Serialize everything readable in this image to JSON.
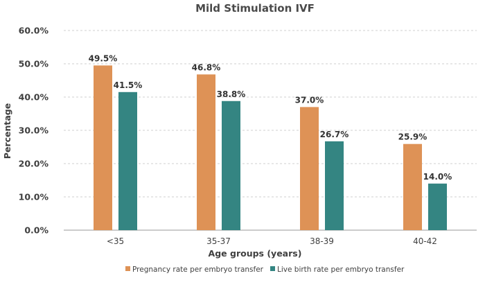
{
  "chart_data": {
    "type": "bar",
    "title": "Mild Stimulation IVF",
    "xlabel": "Age groups (years)",
    "ylabel": "Percentage",
    "categories": [
      "<35",
      "35-37",
      "38-39",
      "40-42"
    ],
    "series": [
      {
        "name": "Pregnancy rate per embryo transfer",
        "values": [
          49.5,
          46.8,
          37.0,
          25.9
        ],
        "labels": [
          "49.5%",
          "46.8%",
          "37.0%",
          "25.9%"
        ],
        "color": "#de9256"
      },
      {
        "name": "Live birth rate per embryo transfer",
        "values": [
          41.5,
          38.8,
          26.7,
          14.0
        ],
        "labels": [
          "41.5%",
          "38.8%",
          "26.7%",
          "14.0%"
        ],
        "color": "#348582"
      }
    ],
    "ylim": [
      0,
      60
    ],
    "yticks": [
      "0.0%",
      "10.0%",
      "20.0%",
      "30.0%",
      "40.0%",
      "50.0%",
      "60.0%"
    ],
    "grid": true,
    "legend_position": "bottom"
  }
}
